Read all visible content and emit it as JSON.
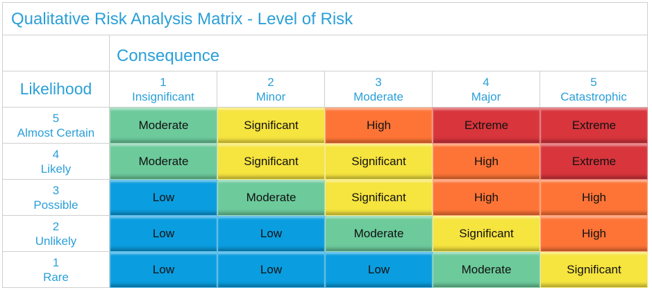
{
  "title": "Qualitative Risk Analysis Matrix - Level of Risk",
  "consequence_label": "Consequence",
  "likelihood_label": "Likelihood",
  "consequences": [
    {
      "num": "1",
      "name": "Insignificant"
    },
    {
      "num": "2",
      "name": "Minor"
    },
    {
      "num": "3",
      "name": "Moderate"
    },
    {
      "num": "4",
      "name": "Major"
    },
    {
      "num": "5",
      "name": "Catastrophic"
    }
  ],
  "likelihoods": [
    {
      "num": "5",
      "name": "Almost Certain"
    },
    {
      "num": "4",
      "name": "Likely"
    },
    {
      "num": "3",
      "name": "Possible"
    },
    {
      "num": "2",
      "name": "Unlikely"
    },
    {
      "num": "1",
      "name": "Rare"
    }
  ],
  "levels": {
    "Low": "#0a9ddf",
    "Moderate": "#6cca9b",
    "Significant": "#f6e43f",
    "High": "#fd7436",
    "Extreme": "#d8353c"
  },
  "matrix": [
    [
      "Moderate",
      "Significant",
      "High",
      "Extreme",
      "Extreme"
    ],
    [
      "Moderate",
      "Significant",
      "Significant",
      "High",
      "Extreme"
    ],
    [
      "Low",
      "Moderate",
      "Significant",
      "High",
      "High"
    ],
    [
      "Low",
      "Low",
      "Moderate",
      "Significant",
      "High"
    ],
    [
      "Low",
      "Low",
      "Low",
      "Moderate",
      "Significant"
    ]
  ]
}
